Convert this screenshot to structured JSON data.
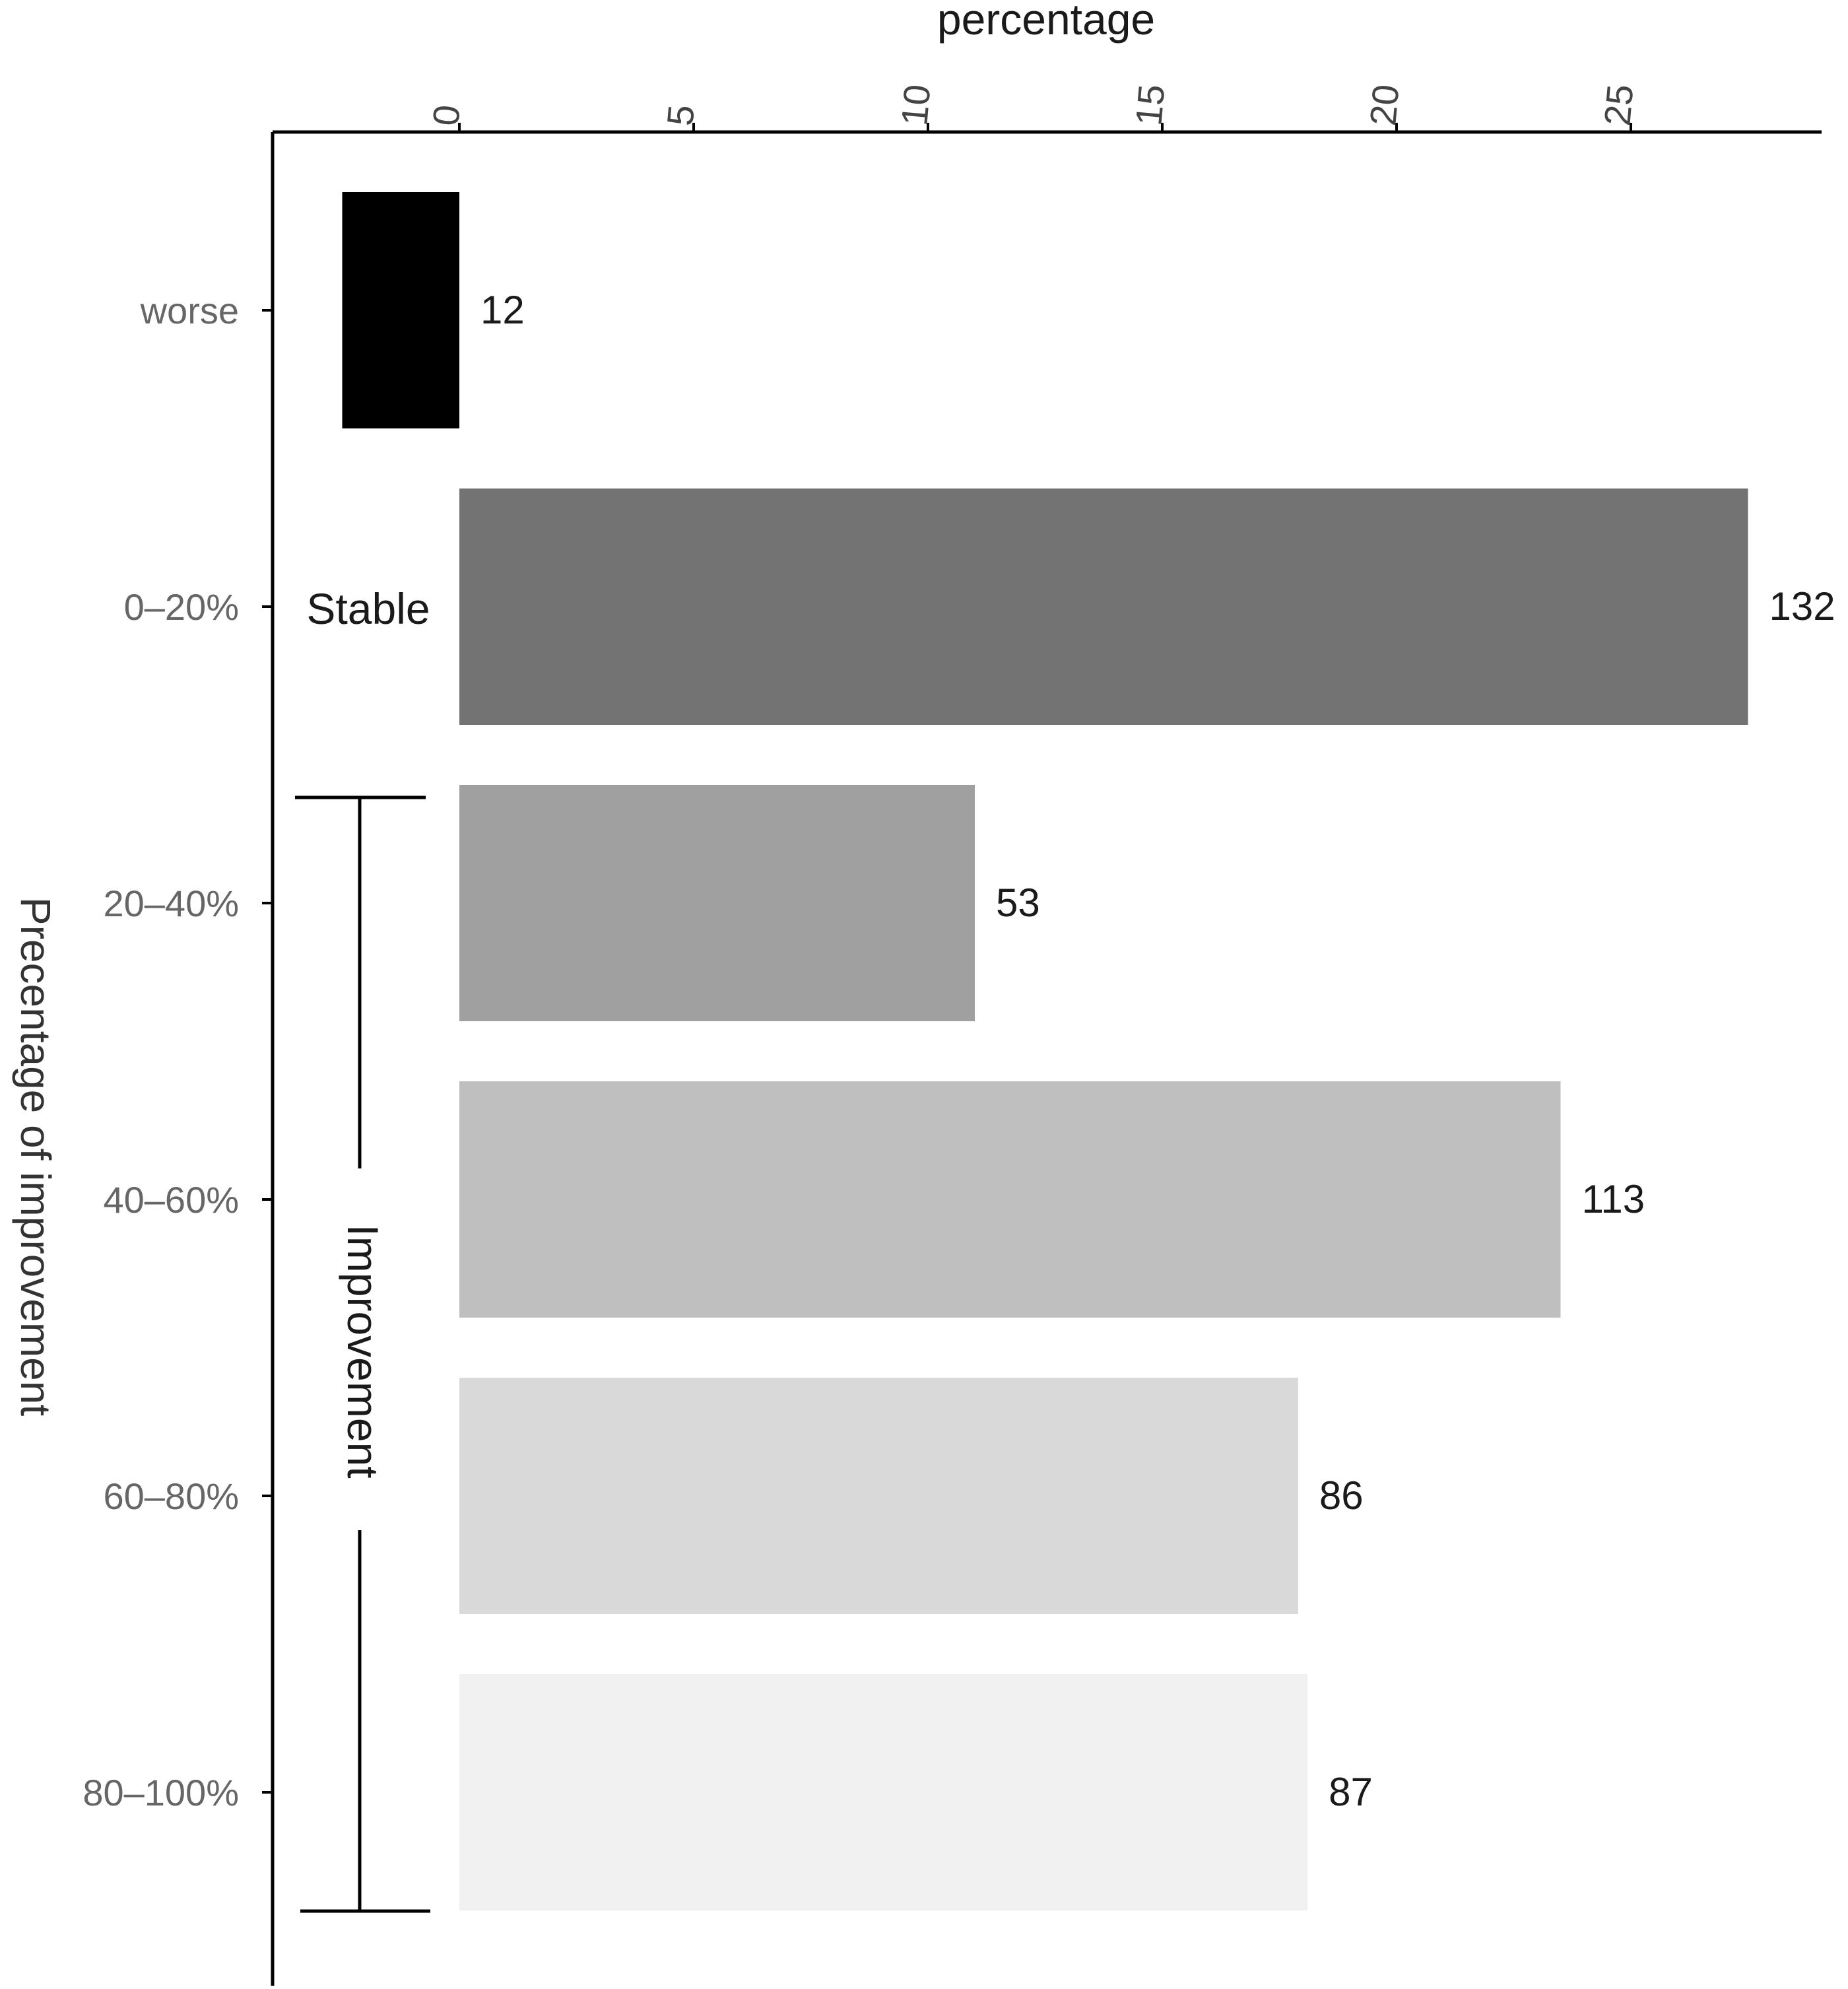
{
  "chart_data": {
    "type": "bar",
    "orientation": "horizontal",
    "xlabel": "percentage",
    "ylabel": "Precentage of improvement",
    "x_axis_position": "top",
    "xlim": [
      -4,
      29
    ],
    "xticks": [
      0,
      5,
      10,
      15,
      20,
      25
    ],
    "grid": false,
    "categories": [
      "worse",
      "0–20%",
      "20–40%",
      "40–60%",
      "60–80%",
      "80–100%"
    ],
    "values": [
      -2.5,
      27.5,
      11.0,
      23.5,
      17.9,
      18.1
    ],
    "data_labels": [
      "12",
      "132",
      "53",
      "113",
      "86",
      "87"
    ],
    "colors": [
      "#000000",
      "#737373",
      "#a0a0a0",
      "#bfbfbf",
      "#d9d9d9",
      "#f1f1f1"
    ],
    "annotations": {
      "stable": "Stable",
      "improvement": "Improvement"
    }
  }
}
